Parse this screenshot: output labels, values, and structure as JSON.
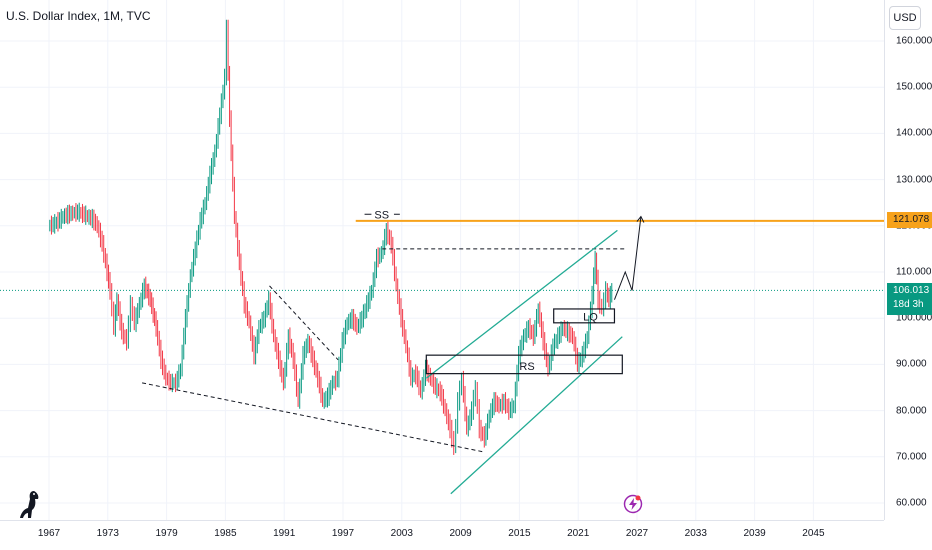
{
  "header": {
    "title": "U.S. Dollar Index, 1M, TVC",
    "currency_button": "USD"
  },
  "tags": {
    "resistance": "121.078",
    "last_price": "106.013",
    "countdown": "18d 3h"
  },
  "annotations": {
    "ss": "SS",
    "rs": "RS",
    "lq": "LQ"
  },
  "colors": {
    "up": "#089981",
    "down": "#f23645",
    "resistance": "#f7a21b",
    "channel": "#22ab94",
    "last_price_line": "#089981"
  },
  "icons": {
    "logo": "dinosaur-icon",
    "alert": "lightning-icon"
  },
  "chart_data": {
    "type": "candlestick-line",
    "title": "U.S. Dollar Index, 1M, TVC",
    "x_ticks": [
      "1967",
      "1973",
      "1979",
      "1985",
      "1991",
      "1997",
      "2003",
      "2009",
      "2015",
      "2021",
      "2027",
      "2033",
      "2039",
      "2045"
    ],
    "y_ticks": [
      "60.000",
      "70.000",
      "80.000",
      "90.000",
      "100.000",
      "110.000",
      "120.000",
      "130.000",
      "140.000",
      "150.000",
      "160.000"
    ],
    "ylim": [
      57,
      167
    ],
    "xlim": [
      1962,
      2050
    ],
    "series": [
      {
        "values": [
          [
            1967.0,
            120
          ],
          [
            1967.5,
            120.3
          ],
          [
            1968.0,
            121
          ],
          [
            1968.5,
            122
          ],
          [
            1969.0,
            122.5
          ],
          [
            1969.5,
            122.8
          ],
          [
            1970.0,
            123
          ],
          [
            1970.5,
            122.6
          ],
          [
            1971.0,
            122
          ],
          [
            1971.5,
            121.5
          ],
          [
            1972.0,
            120
          ],
          [
            1972.5,
            116
          ],
          [
            1973.0,
            110
          ],
          [
            1973.3,
            106
          ],
          [
            1973.7,
            98
          ],
          [
            1974.0,
            104
          ],
          [
            1974.5,
            97
          ],
          [
            1975.0,
            95
          ],
          [
            1975.4,
            103
          ],
          [
            1975.8,
            99
          ],
          [
            1976.3,
            103
          ],
          [
            1976.8,
            107
          ],
          [
            1977.4,
            104
          ],
          [
            1978.0,
            98
          ],
          [
            1978.5,
            91
          ],
          [
            1979.0,
            87
          ],
          [
            1979.5,
            86
          ],
          [
            1980.0,
            86
          ],
          [
            1980.5,
            89
          ],
          [
            1981.0,
            100
          ],
          [
            1981.5,
            109
          ],
          [
            1982.0,
            115
          ],
          [
            1982.5,
            121
          ],
          [
            1983.0,
            125
          ],
          [
            1983.5,
            131
          ],
          [
            1984.0,
            136
          ],
          [
            1984.5,
            144
          ],
          [
            1985.0,
            152
          ],
          [
            1985.2,
            163
          ],
          [
            1985.5,
            143
          ],
          [
            1986.0,
            122
          ],
          [
            1986.5,
            112
          ],
          [
            1987.0,
            103
          ],
          [
            1987.5,
            99
          ],
          [
            1988.0,
            92
          ],
          [
            1988.5,
            98
          ],
          [
            1989.0,
            100
          ],
          [
            1989.5,
            104
          ],
          [
            1990.0,
            96
          ],
          [
            1990.5,
            91
          ],
          [
            1991.0,
            86
          ],
          [
            1991.5,
            96
          ],
          [
            1992.0,
            91
          ],
          [
            1992.5,
            82
          ],
          [
            1993.0,
            92
          ],
          [
            1993.5,
            95
          ],
          [
            1994.0,
            91
          ],
          [
            1994.5,
            87
          ],
          [
            1995.0,
            82
          ],
          [
            1995.5,
            83
          ],
          [
            1996.0,
            86
          ],
          [
            1996.5,
            87
          ],
          [
            1997.0,
            95
          ],
          [
            1997.5,
            99
          ],
          [
            1998.0,
            100
          ],
          [
            1998.5,
            98
          ],
          [
            1999.0,
            100
          ],
          [
            1999.5,
            103
          ],
          [
            2000.0,
            106
          ],
          [
            2000.5,
            113
          ],
          [
            2001.0,
            114
          ],
          [
            2001.5,
            119
          ],
          [
            2002.0,
            116
          ],
          [
            2002.5,
            107
          ],
          [
            2003.0,
            100
          ],
          [
            2003.5,
            94
          ],
          [
            2004.0,
            87
          ],
          [
            2004.5,
            88
          ],
          [
            2005.0,
            84
          ],
          [
            2005.5,
            89
          ],
          [
            2006.0,
            87
          ],
          [
            2006.5,
            85
          ],
          [
            2007.0,
            84
          ],
          [
            2007.5,
            80
          ],
          [
            2008.0,
            76
          ],
          [
            2008.4,
            72
          ],
          [
            2008.8,
            82
          ],
          [
            2009.2,
            87
          ],
          [
            2009.7,
            76
          ],
          [
            2010.2,
            80
          ],
          [
            2010.6,
            85
          ],
          [
            2011.0,
            76
          ],
          [
            2011.5,
            74
          ],
          [
            2012.0,
            79
          ],
          [
            2012.5,
            82
          ],
          [
            2013.0,
            81
          ],
          [
            2013.5,
            82
          ],
          [
            2014.0,
            80
          ],
          [
            2014.5,
            81
          ],
          [
            2015.0,
            92
          ],
          [
            2015.5,
            96
          ],
          [
            2016.0,
            98
          ],
          [
            2016.5,
            96
          ],
          [
            2017.0,
            102
          ],
          [
            2017.5,
            95
          ],
          [
            2018.0,
            89
          ],
          [
            2018.5,
            94
          ],
          [
            2019.0,
            96
          ],
          [
            2019.5,
            98
          ],
          [
            2020.0,
            97
          ],
          [
            2020.5,
            96
          ],
          [
            2021.0,
            90
          ],
          [
            2021.5,
            92
          ],
          [
            2022.0,
            96
          ],
          [
            2022.5,
            105
          ],
          [
            2022.8,
            113
          ],
          [
            2023.1,
            104
          ],
          [
            2023.5,
            102
          ],
          [
            2023.9,
            106
          ],
          [
            2024.2,
            104
          ],
          [
            2024.5,
            106
          ]
        ]
      }
    ],
    "horizontal_lines": [
      {
        "value": 121.078,
        "style": "solid"
      },
      {
        "value": 115.0,
        "from": 2001,
        "to": 2026,
        "style": "dashed"
      },
      {
        "value": 106.013,
        "style": "dotted"
      }
    ],
    "channel": {
      "upper": [
        [
          2005.5,
          87
        ],
        [
          2025.0,
          119
        ]
      ],
      "lower": [
        [
          2008.0,
          62
        ],
        [
          2025.5,
          96
        ]
      ]
    },
    "trendlines": [
      {
        "from": [
          1976.5,
          86
        ],
        "to": [
          2011.5,
          71
        ],
        "style": "dashed"
      },
      {
        "from": [
          1989.5,
          107
        ],
        "to": [
          1996.5,
          91
        ],
        "style": "dashed"
      }
    ],
    "boxes": [
      {
        "label": "RS",
        "x": [
          2005.5,
          2025.5
        ],
        "y": [
          88,
          92
        ]
      },
      {
        "label": "LQ",
        "x": [
          2018.5,
          2024.7
        ],
        "y": [
          99,
          102
        ]
      }
    ],
    "projection": [
      [
        2024.7,
        104
      ],
      [
        2025.8,
        110
      ],
      [
        2026.5,
        106
      ],
      [
        2027.4,
        122
      ]
    ]
  }
}
